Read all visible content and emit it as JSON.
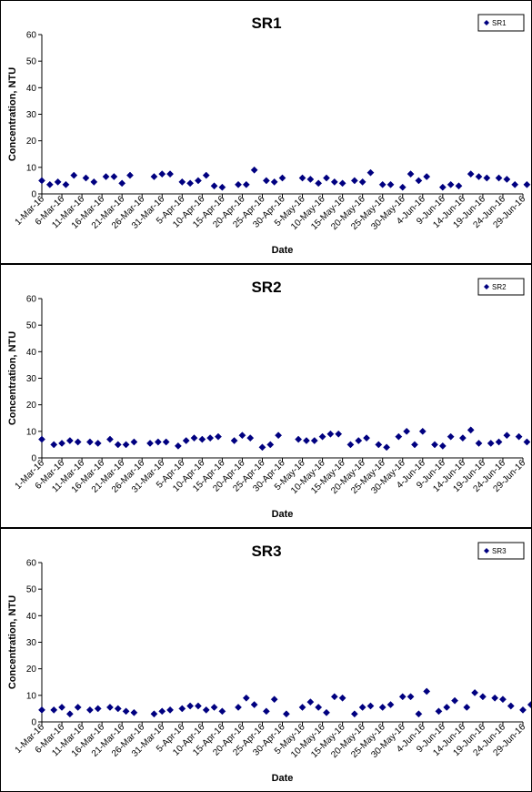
{
  "chart_data": [
    {
      "type": "scatter",
      "title": "SR1",
      "xlabel": "Date",
      "ylabel": "Concentration, NTU",
      "ylim": [
        0,
        60
      ],
      "yticks": [
        0,
        10,
        20,
        30,
        40,
        50,
        60
      ],
      "xlim": [
        "2016-03-01",
        "2016-06-29"
      ],
      "xtick_labels": [
        "1-Mar-16",
        "6-Mar-16",
        "11-Mar-16",
        "16-Mar-16",
        "21-Mar-16",
        "26-Mar-16",
        "31-Mar-16",
        "5-Apr-16",
        "10-Apr-16",
        "15-Apr-16",
        "20-Apr-16",
        "25-Apr-16",
        "30-Apr-16",
        "5-May-16",
        "10-May-16",
        "15-May-16",
        "20-May-16",
        "25-May-16",
        "30-May-16",
        "4-Jun-16",
        "9-Jun-16",
        "14-Jun-16",
        "19-Jun-16",
        "24-Jun-16",
        "29-Jun-16"
      ],
      "grid": false,
      "legend": "top-right",
      "marker": "diamond",
      "color": "#000080",
      "series": [
        {
          "name": "SR1",
          "points": [
            [
              "2016-03-01",
              5.0
            ],
            [
              "2016-03-03",
              3.5
            ],
            [
              "2016-03-05",
              4.5
            ],
            [
              "2016-03-07",
              3.5
            ],
            [
              "2016-03-09",
              7.0
            ],
            [
              "2016-03-12",
              6.0
            ],
            [
              "2016-03-14",
              4.5
            ],
            [
              "2016-03-17",
              6.5
            ],
            [
              "2016-03-19",
              6.5
            ],
            [
              "2016-03-21",
              4.0
            ],
            [
              "2016-03-23",
              7.0
            ],
            [
              "2016-03-29",
              6.5
            ],
            [
              "2016-03-31",
              7.5
            ],
            [
              "2016-04-02",
              7.5
            ],
            [
              "2016-04-05",
              4.5
            ],
            [
              "2016-04-07",
              4.0
            ],
            [
              "2016-04-09",
              5.0
            ],
            [
              "2016-04-11",
              7.0
            ],
            [
              "2016-04-13",
              3.0
            ],
            [
              "2016-04-15",
              2.5
            ],
            [
              "2016-04-19",
              3.5
            ],
            [
              "2016-04-21",
              3.5
            ],
            [
              "2016-04-23",
              9.0
            ],
            [
              "2016-04-26",
              5.0
            ],
            [
              "2016-04-28",
              4.5
            ],
            [
              "2016-04-30",
              6.0
            ],
            [
              "2016-05-05",
              6.0
            ],
            [
              "2016-05-07",
              5.5
            ],
            [
              "2016-05-09",
              4.0
            ],
            [
              "2016-05-11",
              6.0
            ],
            [
              "2016-05-13",
              4.5
            ],
            [
              "2016-05-15",
              4.0
            ],
            [
              "2016-05-18",
              5.0
            ],
            [
              "2016-05-20",
              4.5
            ],
            [
              "2016-05-22",
              8.0
            ],
            [
              "2016-05-25",
              3.5
            ],
            [
              "2016-05-27",
              3.5
            ],
            [
              "2016-05-30",
              2.5
            ],
            [
              "2016-06-01",
              7.5
            ],
            [
              "2016-06-03",
              5.0
            ],
            [
              "2016-06-05",
              6.5
            ],
            [
              "2016-06-09",
              2.5
            ],
            [
              "2016-06-11",
              3.5
            ],
            [
              "2016-06-13",
              3.0
            ],
            [
              "2016-06-16",
              7.5
            ],
            [
              "2016-06-18",
              6.5
            ],
            [
              "2016-06-20",
              6.0
            ],
            [
              "2016-06-23",
              6.0
            ],
            [
              "2016-06-25",
              5.5
            ],
            [
              "2016-06-27",
              3.5
            ],
            [
              "2016-06-30",
              3.5
            ],
            [
              "2016-07-02",
              7.5
            ]
          ]
        }
      ]
    },
    {
      "type": "scatter",
      "title": "SR2",
      "xlabel": "Date",
      "ylabel": "Concentration, NTU",
      "ylim": [
        0,
        60
      ],
      "yticks": [
        0,
        10,
        20,
        30,
        40,
        50,
        60
      ],
      "xlim": [
        "2016-03-01",
        "2016-06-29"
      ],
      "xtick_labels": [
        "1-Mar-16",
        "6-Mar-16",
        "11-Mar-16",
        "16-Mar-16",
        "21-Mar-16",
        "26-Mar-16",
        "31-Mar-16",
        "5-Apr-16",
        "10-Apr-16",
        "15-Apr-16",
        "20-Apr-16",
        "25-Apr-16",
        "30-Apr-16",
        "5-May-16",
        "10-May-16",
        "15-May-16",
        "20-May-16",
        "25-May-16",
        "30-May-16",
        "4-Jun-16",
        "9-Jun-16",
        "14-Jun-16",
        "19-Jun-16",
        "24-Jun-16",
        "29-Jun-16"
      ],
      "grid": false,
      "legend": "top-right",
      "marker": "diamond",
      "color": "#000080",
      "series": [
        {
          "name": "SR2",
          "points": [
            [
              "2016-03-01",
              7.0
            ],
            [
              "2016-03-04",
              5.0
            ],
            [
              "2016-03-06",
              5.5
            ],
            [
              "2016-03-08",
              6.5
            ],
            [
              "2016-03-10",
              6.0
            ],
            [
              "2016-03-13",
              6.0
            ],
            [
              "2016-03-15",
              5.5
            ],
            [
              "2016-03-18",
              7.0
            ],
            [
              "2016-03-20",
              5.0
            ],
            [
              "2016-03-22",
              5.0
            ],
            [
              "2016-03-24",
              6.0
            ],
            [
              "2016-03-28",
              5.5
            ],
            [
              "2016-03-30",
              6.0
            ],
            [
              "2016-04-01",
              6.0
            ],
            [
              "2016-04-04",
              4.5
            ],
            [
              "2016-04-06",
              6.5
            ],
            [
              "2016-04-08",
              7.5
            ],
            [
              "2016-04-10",
              7.0
            ],
            [
              "2016-04-12",
              7.5
            ],
            [
              "2016-04-14",
              8.0
            ],
            [
              "2016-04-18",
              6.5
            ],
            [
              "2016-04-20",
              8.5
            ],
            [
              "2016-04-22",
              7.5
            ],
            [
              "2016-04-25",
              4.0
            ],
            [
              "2016-04-27",
              5.0
            ],
            [
              "2016-04-29",
              8.5
            ],
            [
              "2016-05-04",
              7.0
            ],
            [
              "2016-05-06",
              6.5
            ],
            [
              "2016-05-08",
              6.5
            ],
            [
              "2016-05-10",
              8.0
            ],
            [
              "2016-05-12",
              9.0
            ],
            [
              "2016-05-14",
              9.0
            ],
            [
              "2016-05-17",
              5.0
            ],
            [
              "2016-05-19",
              6.5
            ],
            [
              "2016-05-21",
              7.5
            ],
            [
              "2016-05-24",
              5.0
            ],
            [
              "2016-05-26",
              4.0
            ],
            [
              "2016-05-29",
              8.0
            ],
            [
              "2016-05-31",
              10.0
            ],
            [
              "2016-06-02",
              5.0
            ],
            [
              "2016-06-04",
              10.0
            ],
            [
              "2016-06-07",
              5.0
            ],
            [
              "2016-06-09",
              4.5
            ],
            [
              "2016-06-11",
              8.0
            ],
            [
              "2016-06-14",
              7.5
            ],
            [
              "2016-06-16",
              10.5
            ],
            [
              "2016-06-18",
              5.5
            ],
            [
              "2016-06-21",
              5.5
            ],
            [
              "2016-06-23",
              6.0
            ],
            [
              "2016-06-25",
              8.5
            ],
            [
              "2016-06-28",
              8.0
            ],
            [
              "2016-06-30",
              6.0
            ]
          ]
        }
      ]
    },
    {
      "type": "scatter",
      "title": "SR3",
      "xlabel": "Date",
      "ylabel": "Concentration, NTU",
      "ylim": [
        0,
        60
      ],
      "yticks": [
        0,
        10,
        20,
        30,
        40,
        50,
        60
      ],
      "xlim": [
        "2016-03-01",
        "2016-06-29"
      ],
      "xtick_labels": [
        "1-Mar-16",
        "6-Mar-16",
        "11-Mar-16",
        "16-Mar-16",
        "21-Mar-16",
        "26-Mar-16",
        "31-Mar-16",
        "5-Apr-16",
        "10-Apr-16",
        "15-Apr-16",
        "20-Apr-16",
        "25-Apr-16",
        "30-Apr-16",
        "5-May-16",
        "10-May-16",
        "15-May-16",
        "20-May-16",
        "25-May-16",
        "30-May-16",
        "4-Jun-16",
        "9-Jun-16",
        "14-Jun-16",
        "19-Jun-16",
        "24-Jun-16",
        "29-Jun-16"
      ],
      "grid": false,
      "legend": "top-right",
      "marker": "diamond",
      "color": "#000080",
      "series": [
        {
          "name": "SR3",
          "points": [
            [
              "2016-03-01",
              4.5
            ],
            [
              "2016-03-04",
              4.5
            ],
            [
              "2016-03-06",
              5.5
            ],
            [
              "2016-03-08",
              3.0
            ],
            [
              "2016-03-10",
              5.5
            ],
            [
              "2016-03-13",
              4.5
            ],
            [
              "2016-03-15",
              5.0
            ],
            [
              "2016-03-18",
              5.5
            ],
            [
              "2016-03-20",
              5.0
            ],
            [
              "2016-03-22",
              4.0
            ],
            [
              "2016-03-24",
              3.5
            ],
            [
              "2016-03-29",
              3.0
            ],
            [
              "2016-03-31",
              4.0
            ],
            [
              "2016-04-02",
              4.5
            ],
            [
              "2016-04-05",
              5.0
            ],
            [
              "2016-04-07",
              6.0
            ],
            [
              "2016-04-09",
              6.0
            ],
            [
              "2016-04-11",
              4.5
            ],
            [
              "2016-04-13",
              5.5
            ],
            [
              "2016-04-15",
              4.0
            ],
            [
              "2016-04-19",
              5.5
            ],
            [
              "2016-04-21",
              9.0
            ],
            [
              "2016-04-23",
              6.5
            ],
            [
              "2016-04-26",
              4.0
            ],
            [
              "2016-04-28",
              8.5
            ],
            [
              "2016-05-01",
              3.0
            ],
            [
              "2016-05-05",
              5.5
            ],
            [
              "2016-05-07",
              7.5
            ],
            [
              "2016-05-09",
              5.5
            ],
            [
              "2016-05-11",
              3.5
            ],
            [
              "2016-05-13",
              9.5
            ],
            [
              "2016-05-15",
              9.0
            ],
            [
              "2016-05-18",
              3.0
            ],
            [
              "2016-05-20",
              5.5
            ],
            [
              "2016-05-22",
              6.0
            ],
            [
              "2016-05-25",
              5.5
            ],
            [
              "2016-05-27",
              6.5
            ],
            [
              "2016-05-30",
              9.5
            ],
            [
              "2016-06-01",
              9.5
            ],
            [
              "2016-06-03",
              3.0
            ],
            [
              "2016-06-05",
              11.5
            ],
            [
              "2016-06-08",
              4.0
            ],
            [
              "2016-06-10",
              5.5
            ],
            [
              "2016-06-12",
              8.0
            ],
            [
              "2016-06-15",
              5.5
            ],
            [
              "2016-06-17",
              11.0
            ],
            [
              "2016-06-19",
              9.5
            ],
            [
              "2016-06-22",
              9.0
            ],
            [
              "2016-06-24",
              8.5
            ],
            [
              "2016-06-26",
              6.0
            ],
            [
              "2016-06-29",
              4.5
            ],
            [
              "2016-07-01",
              6.5
            ]
          ]
        }
      ]
    }
  ]
}
